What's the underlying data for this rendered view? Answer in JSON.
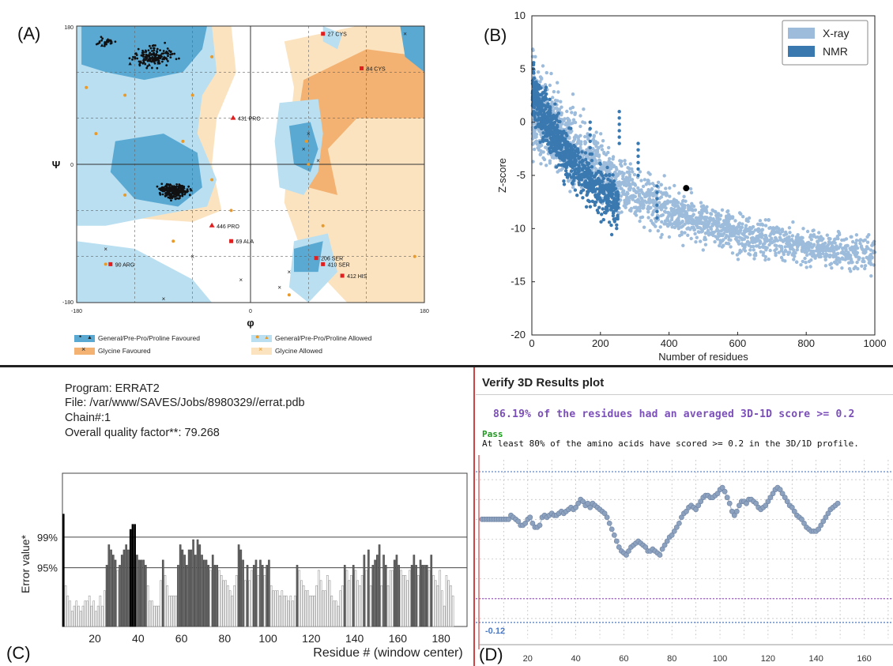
{
  "panel_labels": {
    "a": "(A)",
    "b": "(B)",
    "c": "(C)",
    "d": "(D)"
  },
  "colors": {
    "ram_dark_blue": "#5aa9d3",
    "ram_light_blue": "#b9dff1",
    "ram_orange": "#f3b271",
    "ram_light_orange": "#fbe3c0",
    "xray": "#9dbcdc",
    "nmr": "#3a78b0",
    "errat_dark": "#666666",
    "errat_black": "#000000",
    "v3d_point": "#8da2bf",
    "v3d_purple": "#a05bc8",
    "v3d_blue": "#4a78c2"
  },
  "chart_data": [
    {
      "type": "scatter",
      "id": "ramachandran",
      "xlabel": "φ",
      "ylabel": "Ψ",
      "xlim": [
        -180,
        180
      ],
      "ylim": [
        -180,
        180
      ],
      "x_ticks": [
        "-180",
        "0",
        "180"
      ],
      "y_ticks": [
        "180",
        "0",
        "-180"
      ],
      "legend": [
        {
          "label": "General/Pre-Pro/Proline Favoured",
          "swatch": "ram_dark_blue",
          "marks": [
            "•",
            "▲"
          ]
        },
        {
          "label": "General/Pre-Pro/Proline Allowed",
          "swatch": "ram_light_blue",
          "marks": [
            "●",
            "▲"
          ]
        },
        {
          "label": "Glycine Favoured",
          "swatch": "ram_orange",
          "marks": [
            "×"
          ]
        },
        {
          "label": "Glycine Allowed",
          "swatch": "ram_light_orange",
          "marks": [
            "×"
          ]
        }
      ],
      "outliers": [
        {
          "label": "27 CYS",
          "phi": 75,
          "psi": 170
        },
        {
          "label": "84 CYS",
          "phi": 115,
          "psi": 125
        },
        {
          "label": "431 PRO",
          "phi": -18,
          "psi": 60
        },
        {
          "label": "446 PRO",
          "phi": -40,
          "psi": -80
        },
        {
          "label": "69 ALA",
          "phi": -20,
          "psi": -100
        },
        {
          "label": "90 ARG",
          "phi": -145,
          "psi": -130
        },
        {
          "label": "206 SER",
          "phi": 68,
          "psi": -122
        },
        {
          "label": "410 SER",
          "phi": 75,
          "psi": -130
        },
        {
          "label": "412 HIS",
          "phi": 95,
          "psi": -145
        }
      ]
    },
    {
      "type": "scatter",
      "id": "prosa",
      "xlabel": "Number of residues",
      "ylabel": "Z-score",
      "xlim": [
        0,
        1000
      ],
      "ylim": [
        -20,
        10
      ],
      "x_ticks": [
        0,
        200,
        400,
        600,
        800,
        1000
      ],
      "y_ticks": [
        10,
        5,
        0,
        -5,
        -10,
        -15,
        -20
      ],
      "legend_position": "top-right",
      "series": [
        {
          "name": "X-ray",
          "color": "#9dbcdc"
        },
        {
          "name": "NMR",
          "color": "#3a78b0"
        }
      ],
      "highlight_point": {
        "x": 450,
        "y": -6.2
      }
    },
    {
      "type": "bar",
      "id": "errat",
      "xlabel": "Residue # (window center)",
      "ylabel": "Error value*",
      "x_ticks": [
        20,
        40,
        60,
        80,
        100,
        120,
        140,
        160,
        180
      ],
      "xlim": [
        5,
        192
      ],
      "y_ticks": [
        "99%",
        "95%"
      ],
      "ylim": [
        0,
        30
      ],
      "thresholds": [
        {
          "label": "99%",
          "value": 17.5
        },
        {
          "label": "95%",
          "value": 11.5
        }
      ],
      "values": [
        22,
        8,
        6,
        5,
        3,
        4,
        5,
        4,
        3,
        4,
        5,
        5,
        6,
        4,
        5,
        3,
        4,
        6,
        4,
        7,
        12,
        16,
        15,
        14,
        13,
        11,
        12,
        14,
        15,
        16,
        15,
        19,
        20,
        20,
        14,
        13,
        13,
        13,
        12,
        8,
        5,
        5,
        4,
        4,
        4,
        9,
        13,
        10,
        8,
        6,
        6,
        6,
        6,
        12,
        16,
        15,
        14,
        12,
        15,
        15,
        17,
        14,
        17,
        16,
        14,
        13,
        13,
        12,
        11,
        14,
        12,
        12,
        11,
        10,
        9,
        9,
        8,
        7,
        6,
        8,
        10,
        16,
        15,
        13,
        9,
        12,
        9,
        11,
        12,
        13,
        10,
        13,
        12,
        10,
        12,
        13,
        8,
        7,
        7,
        7,
        6,
        7,
        6,
        6,
        5,
        6,
        5,
        6,
        12,
        11,
        9,
        8,
        7,
        7,
        6,
        6,
        6,
        8,
        11,
        9,
        7,
        7,
        10,
        9,
        6,
        5,
        5,
        4,
        7,
        8,
        12,
        11,
        9,
        10,
        12,
        11,
        9,
        8,
        10,
        14,
        11,
        15,
        8,
        12,
        13,
        14,
        16,
        8,
        14,
        12,
        8,
        11,
        11,
        13,
        14,
        12,
        11,
        10,
        10,
        9,
        11,
        12,
        14,
        12,
        10,
        13,
        12,
        12,
        12,
        11,
        14,
        10,
        9,
        8,
        11,
        7,
        4,
        10,
        9,
        8,
        6
      ],
      "program": "Program: ERRAT2",
      "file": "File: /var/www/SAVES/Jobs/8980329//errat.pdb",
      "chain": "Chain#:1",
      "quality": "Overall quality factor**: 79.268"
    },
    {
      "type": "line",
      "id": "verify3d",
      "title": "Verify 3D Results plot",
      "summary": "86.19% of the residues had an averaged 3D-1D score >= 0.2",
      "status": "Pass",
      "note": "At least 80% of the amino acids have scored >= 0.2 in the 3D/1D profile.",
      "x_ticks": [
        20,
        40,
        60,
        80,
        100,
        120,
        140,
        160
      ],
      "xlim": [
        1,
        172
      ],
      "ylim": [
        -0.2,
        0.7
      ],
      "reference_lines": [
        {
          "value": -0.12,
          "label": "-0.12"
        },
        {
          "value": 0.0
        },
        {
          "value": 0.64
        }
      ],
      "values": [
        0.4,
        0.4,
        0.4,
        0.4,
        0.4,
        0.4,
        0.4,
        0.4,
        0.4,
        0.4,
        0.4,
        0.4,
        0.42,
        0.41,
        0.4,
        0.39,
        0.37,
        0.37,
        0.38,
        0.4,
        0.41,
        0.38,
        0.36,
        0.36,
        0.37,
        0.41,
        0.42,
        0.41,
        0.42,
        0.43,
        0.42,
        0.42,
        0.43,
        0.44,
        0.43,
        0.44,
        0.45,
        0.46,
        0.45,
        0.46,
        0.48,
        0.5,
        0.49,
        0.47,
        0.48,
        0.46,
        0.48,
        0.47,
        0.46,
        0.45,
        0.44,
        0.43,
        0.41,
        0.38,
        0.35,
        0.32,
        0.29,
        0.26,
        0.24,
        0.23,
        0.22,
        0.24,
        0.26,
        0.27,
        0.28,
        0.29,
        0.28,
        0.27,
        0.26,
        0.24,
        0.24,
        0.25,
        0.24,
        0.23,
        0.22,
        0.25,
        0.27,
        0.29,
        0.31,
        0.32,
        0.34,
        0.36,
        0.38,
        0.41,
        0.43,
        0.44,
        0.46,
        0.47,
        0.46,
        0.45,
        0.47,
        0.49,
        0.51,
        0.52,
        0.52,
        0.51,
        0.51,
        0.52,
        0.53,
        0.55,
        0.56,
        0.54,
        0.51,
        0.48,
        0.44,
        0.42,
        0.44,
        0.47,
        0.49,
        0.49,
        0.48,
        0.5,
        0.5,
        0.49,
        0.48,
        0.46,
        0.45,
        0.46,
        0.47,
        0.49,
        0.51,
        0.53,
        0.55,
        0.56,
        0.55,
        0.53,
        0.51,
        0.49,
        0.47,
        0.46,
        0.44,
        0.42,
        0.41,
        0.4,
        0.38,
        0.36,
        0.35,
        0.34,
        0.34,
        0.34,
        0.35,
        0.37,
        0.39,
        0.41,
        0.43,
        0.45,
        0.46,
        0.47,
        0.48
      ]
    }
  ]
}
